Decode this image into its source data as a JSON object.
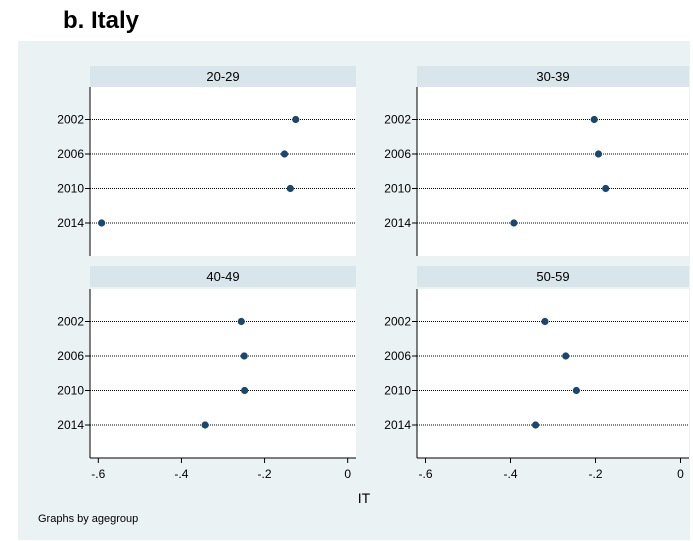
{
  "figure": {
    "title": "b.   Italy",
    "note": "Graphs by agegroup",
    "colors": {
      "background": "#eaf2f3",
      "plot_area": "#ffffff",
      "strip": "#d8e5eb",
      "marker": "#1a476f"
    }
  },
  "chart_data": {
    "type": "scatter",
    "facet_by": "agegroup",
    "xlabel": "IT",
    "ylabel": "",
    "xlim": [
      -0.62,
      0.02
    ],
    "xticks": [
      -0.6,
      -0.4,
      -0.2,
      0
    ],
    "xtick_labels": [
      "-.6",
      "-.4",
      "-.2",
      "0"
    ],
    "categories": [
      "2002",
      "2006",
      "2010",
      "2014"
    ],
    "grid": "dotted horizontal lines at each category",
    "panels": [
      {
        "label": "20-29",
        "values": [
          -0.125,
          -0.152,
          -0.138,
          -0.592
        ]
      },
      {
        "label": "30-39",
        "values": [
          -0.203,
          -0.193,
          -0.176,
          -0.392
        ]
      },
      {
        "label": "40-49",
        "values": [
          -0.256,
          -0.249,
          -0.248,
          -0.343
        ]
      },
      {
        "label": "50-59",
        "values": [
          -0.319,
          -0.27,
          -0.245,
          -0.341
        ]
      }
    ]
  }
}
